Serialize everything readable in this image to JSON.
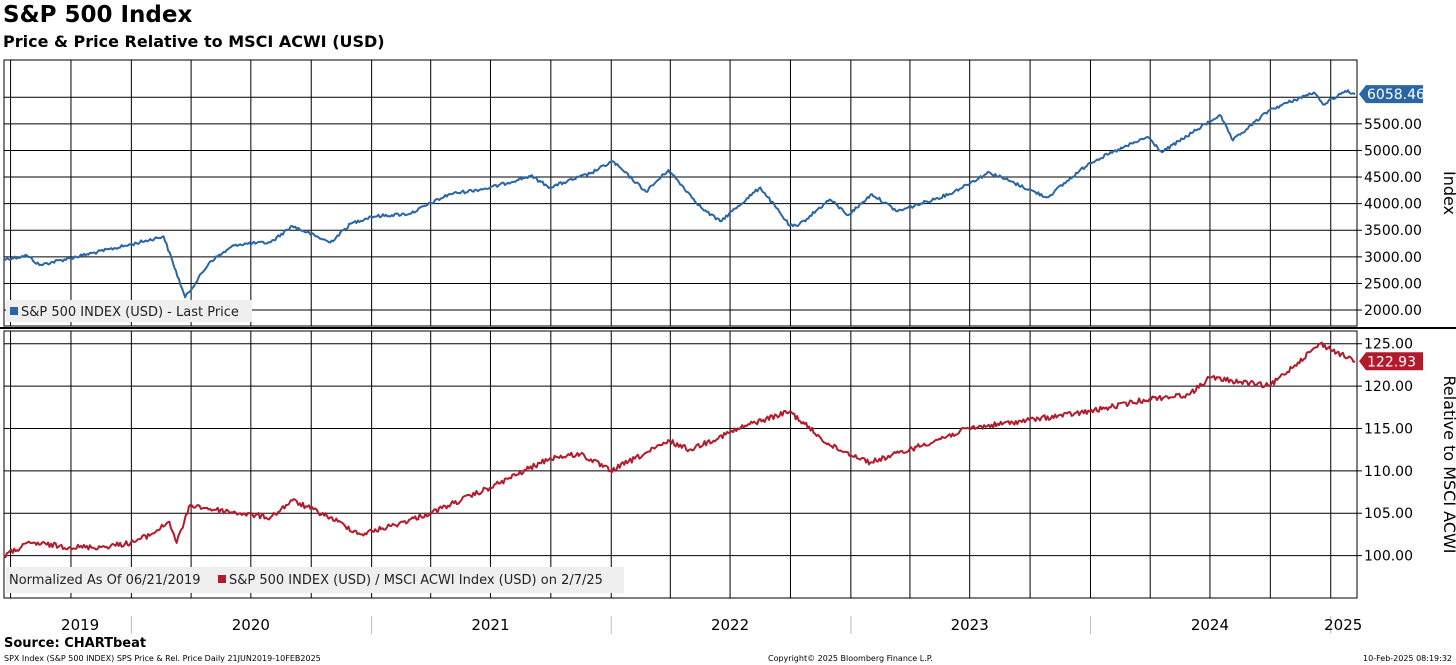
{
  "header": {
    "title": "S&P 500 Index",
    "subtitle": "Price & Price Relative to MSCI ACWI (USD)"
  },
  "chart_data": [
    {
      "type": "line",
      "ylabel": "Index",
      "ylim": [
        1700,
        6700
      ],
      "yticks": [
        2000,
        2500,
        3000,
        3500,
        4000,
        4500,
        5000,
        5500
      ],
      "ytick_labels": [
        "2000.00",
        "2500.00",
        "3000.00",
        "3500.00",
        "4000.00",
        "4500.00",
        "5000.00",
        "5500.00"
      ],
      "last_value": 6058.46,
      "last_value_label": "6058.46",
      "legend": "S&P 500 INDEX (USD) - Last Price",
      "legend_position": "bottom-left",
      "series_color": "#2a66a3",
      "grid": true,
      "series": [
        {
          "name": "S&P 500 INDEX (USD) - Last Price",
          "x": [
            "2019-06-21",
            "2019-07-26",
            "2019-08-14",
            "2019-09-30",
            "2019-12-31",
            "2020-02-19",
            "2020-03-23",
            "2020-04-30",
            "2020-06-08",
            "2020-07-31",
            "2020-09-02",
            "2020-10-30",
            "2020-11-30",
            "2020-12-31",
            "2021-02-28",
            "2021-04-30",
            "2021-06-30",
            "2021-08-31",
            "2021-09-30",
            "2021-11-30",
            "2022-01-03",
            "2022-02-23",
            "2022-03-29",
            "2022-05-20",
            "2022-06-16",
            "2022-08-16",
            "2022-09-30",
            "2022-10-12",
            "2022-11-30",
            "2022-12-28",
            "2023-02-02",
            "2023-03-13",
            "2023-05-31",
            "2023-07-31",
            "2023-10-27",
            "2023-12-31",
            "2024-03-28",
            "2024-04-19",
            "2024-07-16",
            "2024-08-05",
            "2024-09-30",
            "2024-12-06",
            "2024-12-20",
            "2025-01-23",
            "2025-02-07"
          ],
          "values": [
            2950,
            3025,
            2845,
            2976,
            3230,
            3386,
            2237,
            2912,
            3232,
            3271,
            3580,
            3270,
            3622,
            3756,
            3811,
            4181,
            4297,
            4522,
            4307,
            4567,
            4796,
            4225,
            4632,
            3901,
            3666,
            4305,
            3585,
            3577,
            4080,
            3783,
            4179,
            3855,
            4180,
            4589,
            4117,
            4770,
            5254,
            4967,
            5667,
            5186,
            5762,
            6090,
            5867,
            6118,
            6058
          ]
        }
      ]
    },
    {
      "type": "line",
      "ylabel": "Relative to MSCI ACWI",
      "ylim": [
        95,
        126.5
      ],
      "yticks": [
        100,
        105,
        110,
        115,
        120,
        125
      ],
      "ytick_labels": [
        "100.00",
        "105.00",
        "110.00",
        "115.00",
        "120.00",
        "125.00"
      ],
      "last_value": 122.93,
      "last_value_label": "122.93",
      "legend_prefix": "Normalized As Of 06/21/2019",
      "legend": "S&P 500 INDEX (USD) / MSCI ACWI Index (USD) on 2/7/25",
      "legend_position": "bottom-left",
      "series_color": "#b31b2c",
      "grid": true,
      "series": [
        {
          "name": "S&P 500 INDEX (USD) / MSCI ACWI Index (USD) on 2/7/25",
          "x": [
            "2019-06-21",
            "2019-07-31",
            "2019-09-30",
            "2019-11-15",
            "2019-12-31",
            "2020-01-31",
            "2020-02-28",
            "2020-03-10",
            "2020-03-31",
            "2020-04-30",
            "2020-06-15",
            "2020-07-31",
            "2020-09-02",
            "2020-10-30",
            "2020-12-15",
            "2021-01-31",
            "2021-03-31",
            "2021-06-30",
            "2021-09-30",
            "2021-11-15",
            "2021-12-31",
            "2022-03-31",
            "2022-04-30",
            "2022-07-31",
            "2022-09-30",
            "2022-11-30",
            "2023-01-31",
            "2023-03-31",
            "2023-06-30",
            "2023-09-30",
            "2023-12-31",
            "2024-03-31",
            "2024-05-31",
            "2024-06-30",
            "2024-09-30",
            "2024-11-30",
            "2024-12-16",
            "2025-02-07"
          ],
          "values": [
            100,
            101.5,
            101,
            101,
            101.5,
            102.5,
            104,
            101.5,
            106,
            105.5,
            105,
            104.5,
            106.5,
            104.5,
            102.5,
            103.5,
            105,
            108,
            111.5,
            112,
            110,
            113.5,
            112.5,
            115.5,
            117,
            113,
            111,
            112.5,
            115,
            116,
            117,
            118.5,
            119,
            121,
            120,
            124,
            125,
            122.9
          ]
        }
      ]
    }
  ],
  "xaxis": {
    "year_labels": [
      "2019",
      "2020",
      "2021",
      "2022",
      "2023",
      "2024",
      "2025"
    ],
    "year_label_positions": [
      "2019-10-15",
      "2020-07-01",
      "2021-07-01",
      "2022-07-01",
      "2023-07-01",
      "2024-07-01",
      "2025-01-20"
    ],
    "year_starts": [
      "2020-01-01",
      "2021-01-01",
      "2022-01-01",
      "2023-01-01",
      "2024-01-01",
      "2025-01-01"
    ],
    "start": "2019-06-21",
    "end": "2025-02-10"
  },
  "footer": {
    "source": "Source: CHARTbeat",
    "left": "SPX Index (S&P 500 INDEX) SPS Price & Rel. Price  Daily 21JUN2019-10FEB2025",
    "middle": "Copyright© 2025 Bloomberg Finance L.P.",
    "right": "10-Feb-2025 08:19:32"
  }
}
